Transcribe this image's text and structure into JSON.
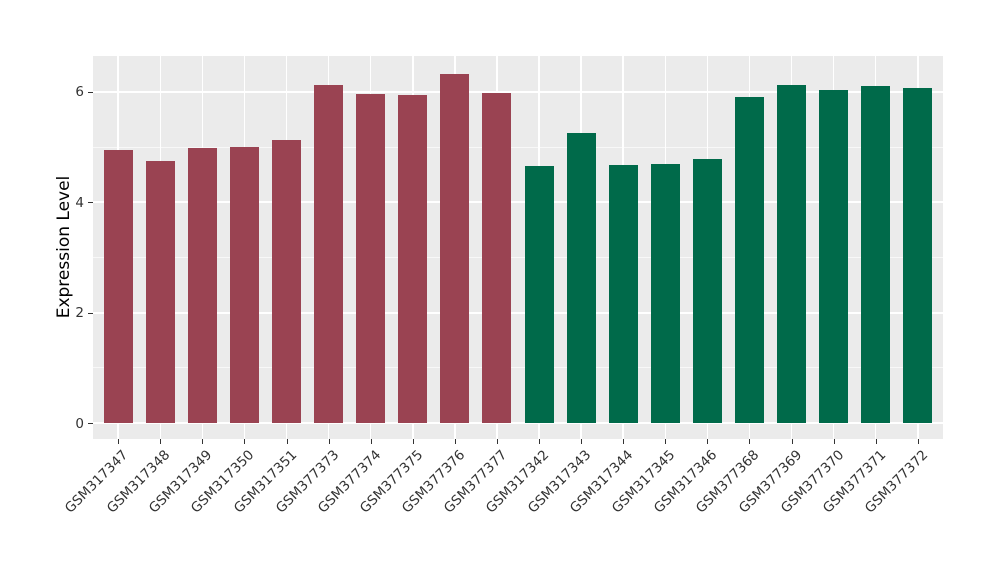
{
  "figure": {
    "background": "#FFFFFF",
    "panel_background": "#EBEBEB",
    "grid_major_color": "#FFFFFF",
    "grid_minor_color": "rgba(255,255,255,0.65)",
    "tick_color": "#333333"
  },
  "chart_data": {
    "type": "bar",
    "title": "",
    "xlabel": "",
    "ylabel": "Expression Level",
    "ylim": [
      0,
      6.65
    ],
    "yticks_major": [
      0,
      2,
      4,
      6
    ],
    "yticks_minor": [
      1,
      3,
      5
    ],
    "ytick_labels": [
      "0",
      "2",
      "4",
      "6"
    ],
    "grid": true,
    "legend": "none",
    "categories": [
      "GSM317347",
      "GSM317348",
      "GSM317349",
      "GSM317350",
      "GSM317351",
      "GSM377373",
      "GSM377374",
      "GSM377375",
      "GSM377376",
      "GSM377377",
      "GSM317342",
      "GSM317343",
      "GSM317344",
      "GSM317345",
      "GSM317346",
      "GSM377368",
      "GSM377369",
      "GSM377370",
      "GSM377371",
      "GSM377372"
    ],
    "values": [
      4.95,
      4.75,
      4.98,
      5.0,
      5.13,
      6.13,
      5.96,
      5.95,
      6.32,
      5.98,
      4.65,
      5.25,
      4.67,
      4.7,
      4.79,
      5.91,
      6.13,
      6.04,
      6.1,
      6.07
    ],
    "bar_colors": [
      "#9A4352",
      "#9A4352",
      "#9A4352",
      "#9A4352",
      "#9A4352",
      "#9A4352",
      "#9A4352",
      "#9A4352",
      "#9A4352",
      "#9A4352",
      "#006A4A",
      "#006A4A",
      "#006A4A",
      "#006A4A",
      "#006A4A",
      "#006A4A",
      "#006A4A",
      "#006A4A",
      "#006A4A",
      "#006A4A"
    ],
    "group_colors": {
      "left_group": "#9A4352",
      "right_group": "#006A4A"
    }
  }
}
